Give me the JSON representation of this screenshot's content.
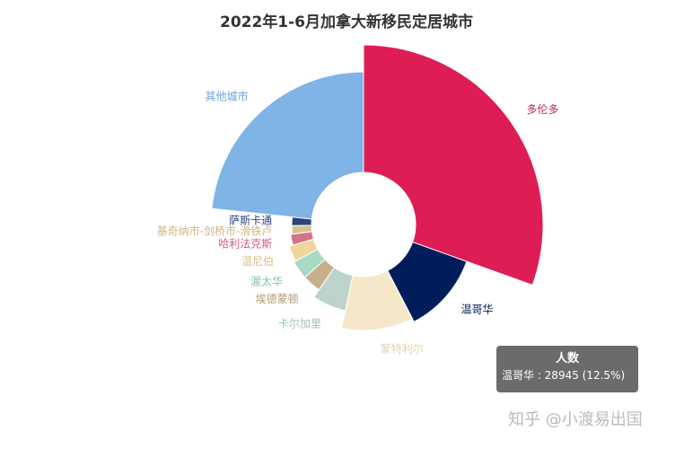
{
  "chart_data": {
    "type": "pie",
    "title": "2022年1-6月加拿大新移民定居城市",
    "slices": [
      {
        "name": "多伦多",
        "value": 32.0,
        "color": "#de1d54",
        "label_color": "#c0284f"
      },
      {
        "name": "温哥华",
        "value": 12.5,
        "color": "#011c5a",
        "label_color": "#011c5a"
      },
      {
        "name": "蒙特利尔",
        "value": 11.5,
        "color": "#f5e8c8",
        "label_color": "#e3d3aa"
      },
      {
        "name": "卡尔加里",
        "value": 6.5,
        "color": "#bbd3c8",
        "label_color": "#9fbfb1"
      },
      {
        "name": "埃德蒙顿",
        "value": 4.0,
        "color": "#c6b08c",
        "label_color": "#b39a72"
      },
      {
        "name": "渥太华",
        "value": 4.0,
        "color": "#a7d9c5",
        "label_color": "#82c6ab"
      },
      {
        "name": "温尼伯",
        "value": 3.5,
        "color": "#f2d598",
        "label_color": "#ddc07d"
      },
      {
        "name": "哈利法克斯",
        "value": 2.5,
        "color": "#d4728a",
        "label_color": "#c8607a"
      },
      {
        "name": "基奇纳市-剑桥市-滑铁卢",
        "value": 2.0,
        "color": "#d9c18e",
        "label_color": "#d1b67a"
      },
      {
        "name": "萨斯卡通",
        "value": 2.0,
        "color": "#2a4580",
        "label_color": "#2a4580"
      },
      {
        "name": "其他城市",
        "value": 24.5,
        "color": "#80b3e6",
        "label_color": "#6aa3d9"
      }
    ],
    "legend": "none"
  },
  "tooltip": {
    "title": "人数",
    "text": "温哥华 : 28945 (12.5%)"
  },
  "watermark": "知乎 @小渡易出国"
}
